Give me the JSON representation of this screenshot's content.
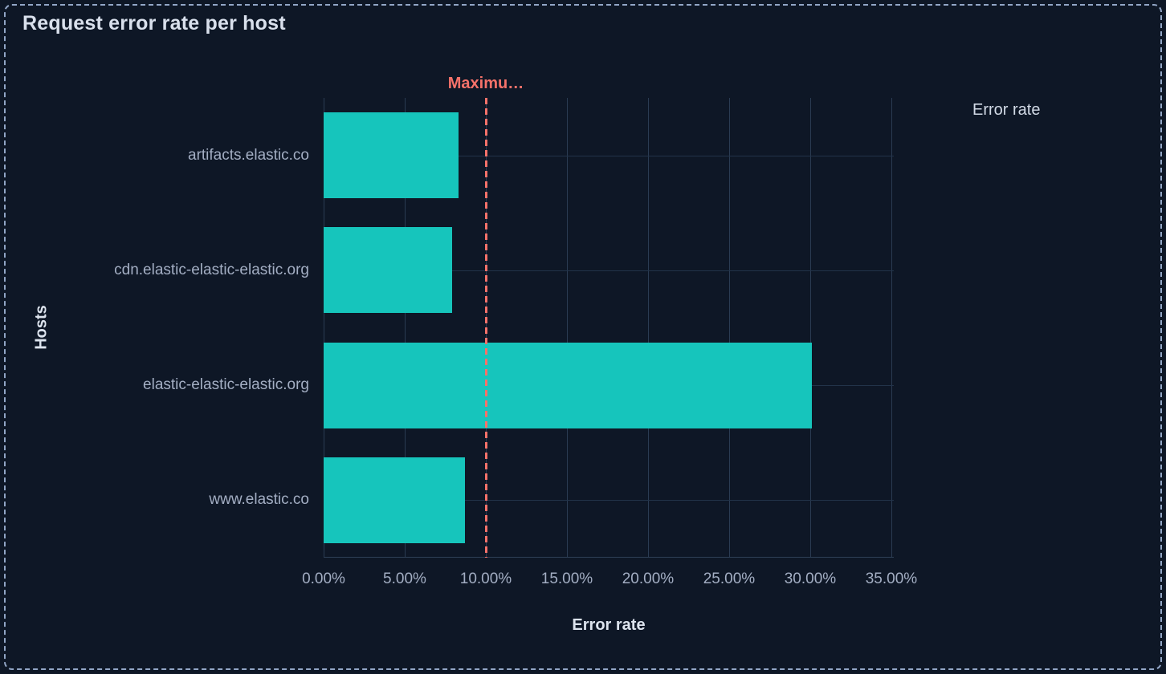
{
  "panel": {
    "title": "Request error rate per host",
    "background_color": "#0e1726",
    "border_color": "#92a6c6"
  },
  "legend": {
    "position": "right",
    "items": [
      {
        "label": "Error rate",
        "swatch_icon": "circle",
        "color": "#16c5bc"
      }
    ]
  },
  "chart_data": {
    "type": "bar",
    "orientation": "horizontal",
    "title": "Request error rate per host",
    "xlabel": "Error rate",
    "ylabel": "Hosts",
    "categories": [
      "artifacts.elastic.co",
      "cdn.elastic-elastic-elastic.org",
      "elastic-elastic-elastic.org",
      "www.elastic.co"
    ],
    "series": [
      {
        "name": "Error rate",
        "color": "#16c5bc",
        "unit": "%",
        "values": [
          8.3,
          7.9,
          30.1,
          8.7
        ]
      }
    ],
    "x_axis": {
      "title": "Error rate",
      "tick_labels": [
        "0.00%",
        "5.00%",
        "10.00%",
        "15.00%",
        "20.00%",
        "25.00%",
        "30.00%",
        "35.00%"
      ],
      "tick_values": [
        0,
        5,
        10,
        15,
        20,
        25,
        30,
        35
      ],
      "domain_max": 35.15,
      "grid": true
    },
    "y_axis": {
      "title": "Hosts",
      "grid": true
    },
    "annotations": [
      {
        "type": "vertical-line",
        "label": "Maximu…",
        "value": 10,
        "style": "dashed",
        "color": "#f6726a"
      }
    ],
    "legend_position": "right",
    "colors": {
      "bar": "#16c5bc",
      "threshold": "#f6726a",
      "gridline": "#2a3b52",
      "tick_text": "#a3aec3",
      "axis_title_text": "#dde4ee",
      "title_text": "#d9e0ec"
    }
  }
}
